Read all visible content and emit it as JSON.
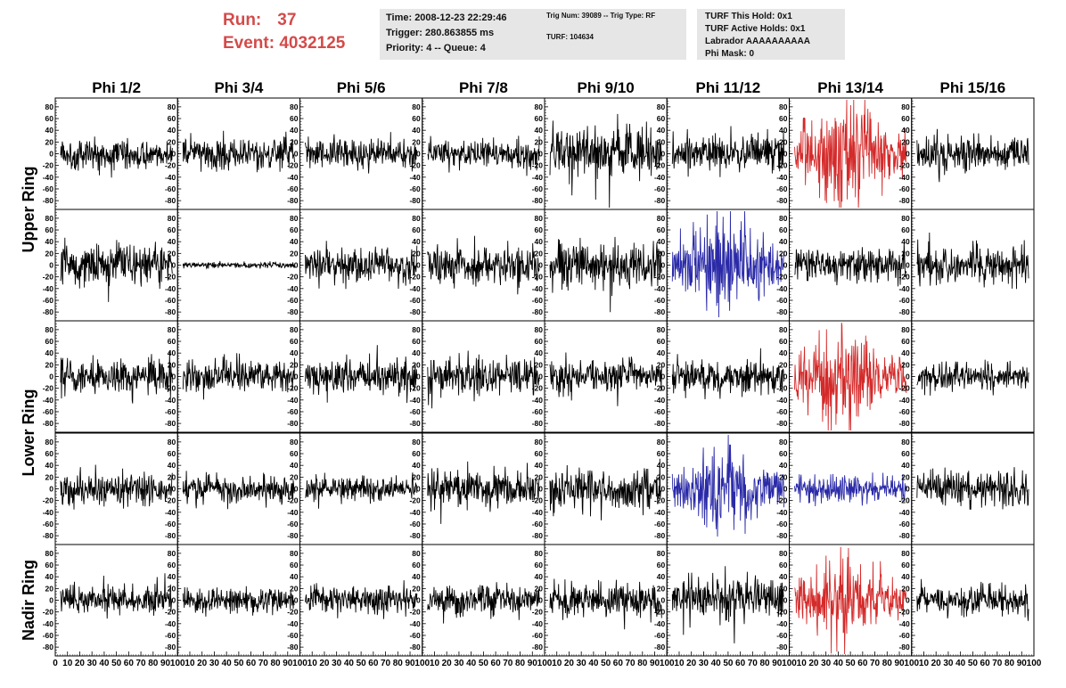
{
  "header": {
    "run_label": "Run:",
    "run_value": "37",
    "event_label": "Event:",
    "event_value": "4032125",
    "time": "Time: 2008-12-23 22:29:46",
    "trigger": "Trigger: 280.863855 ms",
    "priority_queue": "Priority: 4 -- Queue: 4",
    "trig_num_type": "Trig Num: 39089 -- Trig Type: RF",
    "turf": "TURF: 104634",
    "turf_this_hold": "TURF This Hold: 0x1",
    "turf_active_holds": "TURF Active Holds: 0x1",
    "labrador": "Labrador AAAAAAAAAA",
    "phi_mask": "Phi Mask: 0"
  },
  "colors": {
    "header_red": "#d44a4a",
    "box_grey": "#e6e6e6",
    "trace_black": "#000000",
    "trace_red": "#d42a2a",
    "trace_blue": "#2a2aa8"
  },
  "chart_data": {
    "type": "line",
    "columns": [
      "Phi 1/2",
      "Phi 3/4",
      "Phi 5/6",
      "Phi 7/8",
      "Phi 9/10",
      "Phi 11/12",
      "Phi 13/14",
      "Phi 15/16"
    ],
    "row_labels": [
      {
        "text": "Upper Ring",
        "spans_rows": [
          0,
          1
        ]
      },
      {
        "text": "Lower Ring",
        "spans_rows": [
          2,
          3
        ]
      },
      {
        "text": "Nadir Ring",
        "spans_rows": [
          4
        ]
      }
    ],
    "ylim": [
      -95,
      95
    ],
    "y_ticks": [
      -80,
      -60,
      -40,
      -20,
      0,
      20,
      40,
      60,
      80
    ],
    "xlim": [
      0,
      100
    ],
    "x_tick_labels": [
      "0",
      "10",
      "20",
      "30",
      "40",
      "50",
      "60",
      "70",
      "80",
      "90",
      "100"
    ],
    "x_tick_labels_last_column": [
      "10",
      "20",
      "30",
      "40",
      "50",
      "60",
      "70",
      "80",
      "90",
      "100"
    ],
    "samples_per_trace": 260,
    "traces": [
      [
        {
          "color": "black",
          "amp": 14,
          "burst": 0
        },
        {
          "color": "black",
          "amp": 15,
          "burst": 0
        },
        {
          "color": "black",
          "amp": 15,
          "burst": 0
        },
        {
          "color": "black",
          "amp": 14,
          "burst": 0
        },
        {
          "color": "black",
          "amp": 26,
          "burst": 0
        },
        {
          "color": "black",
          "amp": 17,
          "burst": 0
        },
        {
          "color": "red",
          "amp": 20,
          "burst": 40
        },
        {
          "color": "black",
          "amp": 16,
          "burst": 0
        }
      ],
      [
        {
          "color": "black",
          "amp": 19,
          "burst": 0
        },
        {
          "color": "black",
          "amp": 3,
          "burst": 0
        },
        {
          "color": "black",
          "amp": 16,
          "burst": 0
        },
        {
          "color": "black",
          "amp": 18,
          "burst": 0
        },
        {
          "color": "black",
          "amp": 22,
          "burst": 0
        },
        {
          "color": "blue",
          "amp": 20,
          "burst": 30
        },
        {
          "color": "black",
          "amp": 15,
          "burst": 0
        },
        {
          "color": "black",
          "amp": 18,
          "burst": 0
        }
      ],
      [
        {
          "color": "black",
          "amp": 16,
          "burst": 0
        },
        {
          "color": "black",
          "amp": 16,
          "burst": 0
        },
        {
          "color": "black",
          "amp": 17,
          "burst": 0
        },
        {
          "color": "black",
          "amp": 18,
          "burst": 0
        },
        {
          "color": "black",
          "amp": 16,
          "burst": 0
        },
        {
          "color": "black",
          "amp": 16,
          "burst": 0
        },
        {
          "color": "red",
          "amp": 18,
          "burst": 38
        },
        {
          "color": "black",
          "amp": 13,
          "burst": 0
        }
      ],
      [
        {
          "color": "black",
          "amp": 15,
          "burst": 0
        },
        {
          "color": "black",
          "amp": 13,
          "burst": 0
        },
        {
          "color": "black",
          "amp": 12,
          "burst": 0
        },
        {
          "color": "black",
          "amp": 18,
          "burst": 0
        },
        {
          "color": "black",
          "amp": 20,
          "burst": 0
        },
        {
          "color": "blue",
          "amp": 18,
          "burst": 30
        },
        {
          "color": "blue",
          "amp": 13,
          "burst": 0
        },
        {
          "color": "black",
          "amp": 17,
          "burst": 0
        }
      ],
      [
        {
          "color": "black",
          "amp": 14,
          "burst": 0
        },
        {
          "color": "black",
          "amp": 12,
          "burst": 0
        },
        {
          "color": "black",
          "amp": 13,
          "burst": 0
        },
        {
          "color": "black",
          "amp": 14,
          "burst": 0
        },
        {
          "color": "black",
          "amp": 17,
          "burst": 0
        },
        {
          "color": "black",
          "amp": 20,
          "burst": 0
        },
        {
          "color": "red",
          "amp": 16,
          "burst": 25
        },
        {
          "color": "black",
          "amp": 14,
          "burst": 0
        }
      ]
    ]
  }
}
